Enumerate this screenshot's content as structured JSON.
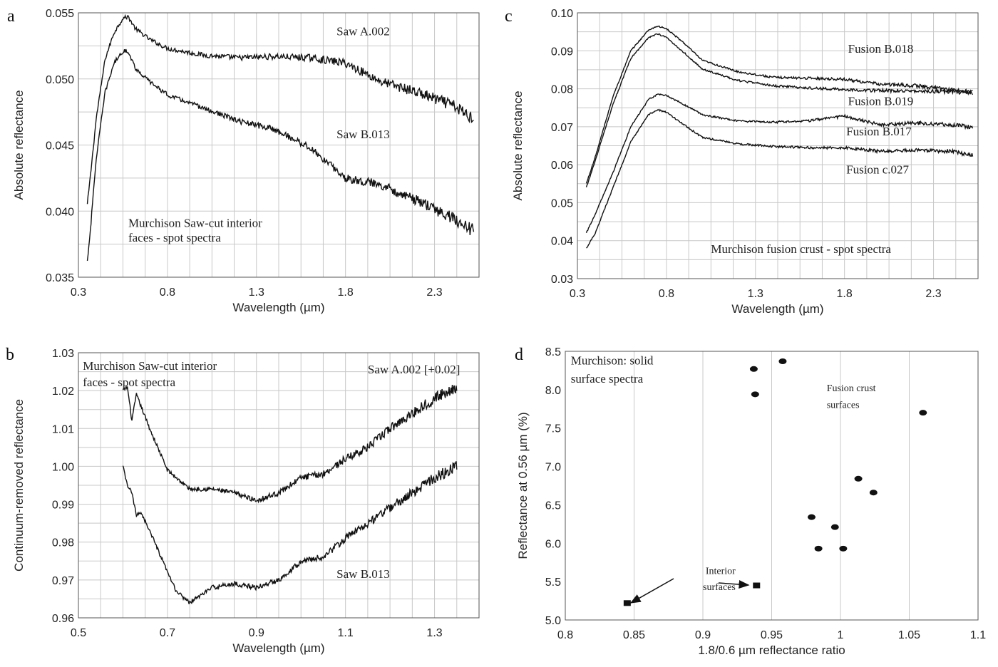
{
  "chart_data": [
    {
      "id": "a",
      "panel_label": "a",
      "type": "line",
      "xlabel": "Wavelength (µm)",
      "ylabel": "Absolute reflectance",
      "xlim": [
        0.3,
        2.55
      ],
      "ylim": [
        0.035,
        0.055
      ],
      "xticks": [
        0.3,
        0.8,
        1.3,
        1.8,
        2.3
      ],
      "xtick_labels": [
        "0.3",
        "0.8",
        "1.3",
        "1.8",
        "2.3"
      ],
      "yticks": [
        0.035,
        0.04,
        0.045,
        0.05,
        0.055
      ],
      "ytick_labels": [
        "0.035",
        "0.040",
        "0.045",
        "0.050",
        "0.055"
      ],
      "grid": true,
      "annotations": [
        {
          "text": "Saw A.002",
          "x": 1.75,
          "y": 0.0533
        },
        {
          "text": "Saw B.013",
          "x": 1.75,
          "y": 0.0455
        },
        {
          "text": "Murchison Saw-cut interior",
          "x": 0.58,
          "y": 0.0388
        },
        {
          "text": "faces - spot spectra",
          "x": 0.58,
          "y": 0.0377
        }
      ],
      "series": [
        {
          "name": "Saw A.002",
          "noise": 0.00025,
          "x": [
            0.35,
            0.37,
            0.4,
            0.45,
            0.5,
            0.55,
            0.58,
            0.62,
            0.7,
            0.8,
            1.0,
            1.2,
            1.4,
            1.6,
            1.8,
            2.0,
            2.2,
            2.4,
            2.52
          ],
          "y": [
            0.0405,
            0.043,
            0.047,
            0.0515,
            0.0535,
            0.0546,
            0.0547,
            0.0538,
            0.053,
            0.0523,
            0.0518,
            0.0516,
            0.0517,
            0.0516,
            0.0512,
            0.0498,
            0.049,
            0.048,
            0.047
          ]
        },
        {
          "name": "Saw B.013",
          "noise": 0.00025,
          "x": [
            0.35,
            0.37,
            0.4,
            0.45,
            0.5,
            0.55,
            0.58,
            0.62,
            0.7,
            0.8,
            1.0,
            1.2,
            1.4,
            1.6,
            1.8,
            2.0,
            2.2,
            2.4,
            2.52
          ],
          "y": [
            0.0362,
            0.039,
            0.044,
            0.049,
            0.0512,
            0.0521,
            0.0521,
            0.0508,
            0.0498,
            0.0488,
            0.0478,
            0.0468,
            0.0462,
            0.0448,
            0.0425,
            0.042,
            0.0408,
            0.0395,
            0.0385
          ]
        }
      ]
    },
    {
      "id": "b",
      "panel_label": "b",
      "type": "line",
      "xlabel": "Wavelength (µm)",
      "ylabel": "Continuum-removed reflectance",
      "xlim": [
        0.5,
        1.4
      ],
      "ylim": [
        0.96,
        1.03
      ],
      "xticks": [
        0.5,
        0.7,
        0.9,
        1.1,
        1.3
      ],
      "xtick_labels": [
        "0.5",
        "0.7",
        "0.9",
        "1.1",
        "1.3"
      ],
      "yticks": [
        0.96,
        0.97,
        0.98,
        0.99,
        1.0,
        1.01,
        1.02,
        1.03
      ],
      "ytick_labels": [
        "0.96",
        "0.97",
        "0.98",
        "0.99",
        "1.00",
        "1.01",
        "1.02",
        "1.03"
      ],
      "grid": true,
      "annotations": [
        {
          "text": "Murchison Saw-cut interior",
          "x": 0.51,
          "y": 1.0255
        },
        {
          "text": "faces - spot spectra",
          "x": 0.51,
          "y": 1.0212
        },
        {
          "text": "Saw A.002 [+0.02]",
          "x": 1.15,
          "y": 1.0245
        },
        {
          "text": "Saw B.013",
          "x": 1.08,
          "y": 0.9705
        }
      ],
      "series": [
        {
          "name": "Saw A.002 [+0.02]",
          "noise": 0.0008,
          "x": [
            0.6,
            0.61,
            0.62,
            0.63,
            0.64,
            0.66,
            0.7,
            0.75,
            0.8,
            0.85,
            0.9,
            0.95,
            1.0,
            1.05,
            1.1,
            1.15,
            1.2,
            1.25,
            1.3,
            1.35
          ],
          "y": [
            1.02,
            1.021,
            1.012,
            1.019,
            1.016,
            1.01,
            0.999,
            0.994,
            0.994,
            0.993,
            0.991,
            0.993,
            0.997,
            0.998,
            1.002,
            1.005,
            1.01,
            1.014,
            1.018,
            1.021
          ]
        },
        {
          "name": "Saw B.013",
          "noise": 0.0008,
          "x": [
            0.6,
            0.61,
            0.62,
            0.63,
            0.64,
            0.66,
            0.7,
            0.72,
            0.75,
            0.8,
            0.85,
            0.9,
            0.95,
            1.0,
            1.05,
            1.1,
            1.15,
            1.2,
            1.25,
            1.3,
            1.35
          ],
          "y": [
            1.0,
            0.995,
            0.993,
            0.987,
            0.988,
            0.983,
            0.972,
            0.967,
            0.964,
            0.968,
            0.969,
            0.968,
            0.97,
            0.975,
            0.976,
            0.981,
            0.985,
            0.989,
            0.993,
            0.997,
            1.0
          ]
        }
      ]
    },
    {
      "id": "c",
      "panel_label": "c",
      "type": "line",
      "xlabel": "Wavelength (µm)",
      "ylabel": "Absolute reflectance",
      "xlim": [
        0.3,
        2.55
      ],
      "ylim": [
        0.03,
        0.1
      ],
      "xticks": [
        0.3,
        0.8,
        1.3,
        1.8,
        2.3
      ],
      "xtick_labels": [
        "0.3",
        "0.8",
        "1.3",
        "1.8",
        "2.3"
      ],
      "yticks": [
        0.03,
        0.04,
        0.05,
        0.06,
        0.07,
        0.08,
        0.09,
        0.1
      ],
      "ytick_labels": [
        "0.03",
        "0.04",
        "0.05",
        "0.06",
        "0.07",
        "0.08",
        "0.09",
        "0.10"
      ],
      "grid": true,
      "annotations": [
        {
          "text": "Fusion B.018",
          "x": 1.82,
          "y": 0.0895
        },
        {
          "text": "Fusion B.019",
          "x": 1.82,
          "y": 0.0757
        },
        {
          "text": "Fusion B.017",
          "x": 1.81,
          "y": 0.0677
        },
        {
          "text": "Fusion c.027",
          "x": 1.81,
          "y": 0.0577
        },
        {
          "text": "Murchison fusion crust - spot spectra",
          "x": 1.05,
          "y": 0.0368
        }
      ],
      "series": [
        {
          "name": "Fusion B.018",
          "noise": 0.0003,
          "x": [
            0.35,
            0.4,
            0.5,
            0.6,
            0.7,
            0.75,
            0.8,
            0.9,
            1.0,
            1.2,
            1.4,
            1.6,
            1.8,
            2.0,
            2.2,
            2.4,
            2.52
          ],
          "y": [
            0.055,
            0.062,
            0.078,
            0.09,
            0.0955,
            0.0965,
            0.0958,
            0.092,
            0.0875,
            0.0845,
            0.083,
            0.0828,
            0.0825,
            0.0812,
            0.0808,
            0.0798,
            0.079
          ]
        },
        {
          "name": "Fusion B.019",
          "noise": 0.0003,
          "x": [
            0.35,
            0.4,
            0.5,
            0.6,
            0.7,
            0.75,
            0.8,
            0.9,
            1.0,
            1.2,
            1.4,
            1.6,
            1.8,
            2.0,
            2.2,
            2.4,
            2.52
          ],
          "y": [
            0.054,
            0.061,
            0.076,
            0.088,
            0.0935,
            0.0945,
            0.0935,
            0.0895,
            0.0852,
            0.0822,
            0.0808,
            0.0802,
            0.0798,
            0.0795,
            0.0795,
            0.0792,
            0.079
          ]
        },
        {
          "name": "Fusion B.017",
          "noise": 0.0003,
          "x": [
            0.35,
            0.4,
            0.5,
            0.6,
            0.7,
            0.75,
            0.8,
            0.9,
            1.0,
            1.2,
            1.4,
            1.6,
            1.8,
            2.0,
            2.2,
            2.4,
            2.52
          ],
          "y": [
            0.042,
            0.047,
            0.058,
            0.07,
            0.0772,
            0.0785,
            0.0782,
            0.0758,
            0.0732,
            0.0715,
            0.0712,
            0.0716,
            0.0728,
            0.0705,
            0.071,
            0.0705,
            0.07
          ]
        },
        {
          "name": "Fusion c.027",
          "noise": 0.0003,
          "x": [
            0.35,
            0.4,
            0.5,
            0.6,
            0.7,
            0.75,
            0.8,
            0.9,
            1.0,
            1.2,
            1.4,
            1.6,
            1.8,
            2.0,
            2.2,
            2.4,
            2.52
          ],
          "y": [
            0.038,
            0.042,
            0.054,
            0.066,
            0.0732,
            0.0745,
            0.0738,
            0.0705,
            0.0672,
            0.0655,
            0.0648,
            0.0645,
            0.0645,
            0.0635,
            0.0638,
            0.0635,
            0.0625
          ]
        }
      ]
    },
    {
      "id": "d",
      "panel_label": "d",
      "type": "scatter",
      "xlabel": "1.8/0.6 µm reflectance ratio",
      "ylabel": "Reflectance at 0.56 µm (%)",
      "xlim": [
        0.8,
        1.1
      ],
      "ylim": [
        5.0,
        8.5
      ],
      "xticks": [
        0.8,
        0.85,
        0.9,
        0.95,
        1.0,
        1.05,
        1.1
      ],
      "xtick_labels": [
        "0.8",
        "0.85",
        "0.9",
        "0.95",
        "1",
        "1.05",
        "1.1"
      ],
      "yticks": [
        5.0,
        5.5,
        6.0,
        6.5,
        7.0,
        7.5,
        8.0,
        8.5
      ],
      "ytick_labels": [
        "5.0",
        "5.5",
        "6.0",
        "6.5",
        "7.0",
        "7.5",
        "8.0",
        "8.5"
      ],
      "grid": "vertical",
      "annotations": [
        {
          "text": "Murchison: solid",
          "x": 0.804,
          "y": 8.33
        },
        {
          "text": "surface spectra",
          "x": 0.804,
          "y": 8.09
        },
        {
          "text": "Fusion crust",
          "x": 0.99,
          "y": 7.98
        },
        {
          "text": "surfaces",
          "x": 0.99,
          "y": 7.76
        },
        {
          "text": "Interior",
          "x": 0.902,
          "y": 5.6
        },
        {
          "text": "surfaces",
          "x": 0.9,
          "y": 5.39
        }
      ],
      "series": [
        {
          "name": "Fusion crust surfaces",
          "marker": "ellipse",
          "x": [
            0.937,
            0.938,
            0.958,
            1.06,
            1.013,
            1.024,
            0.979,
            0.996,
            0.984,
            1.002
          ],
          "y": [
            8.27,
            7.94,
            8.37,
            7.7,
            6.84,
            6.66,
            6.34,
            6.21,
            5.93,
            5.93
          ]
        },
        {
          "name": "Interior surfaces",
          "marker": "square",
          "x": [
            0.845,
            0.939
          ],
          "y": [
            5.22,
            5.45
          ]
        }
      ]
    }
  ]
}
